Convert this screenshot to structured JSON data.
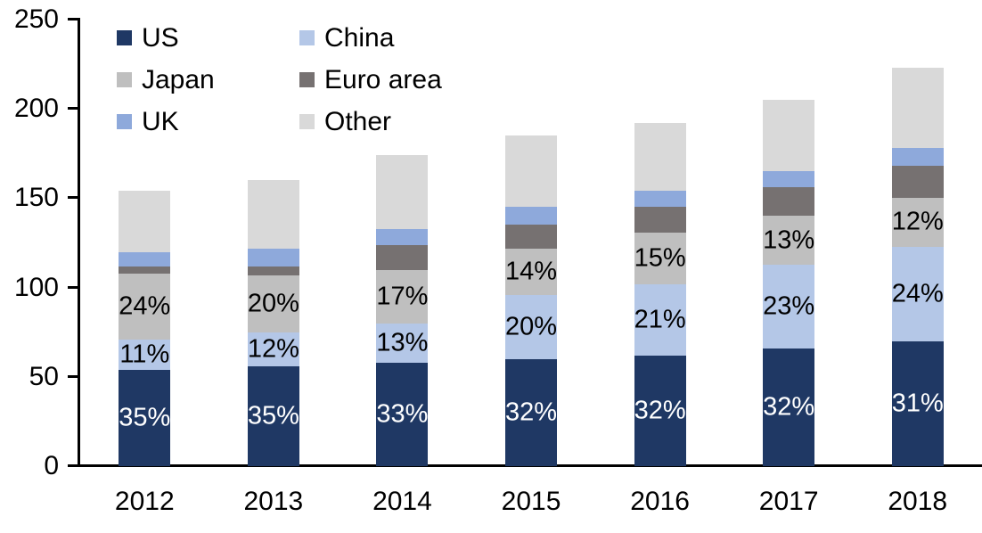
{
  "chart_data": {
    "type": "bar",
    "variant": "stacked",
    "title": "",
    "xlabel": "",
    "ylabel": "",
    "x": [
      "2012",
      "2013",
      "2014",
      "2015",
      "2016",
      "2017",
      "2018"
    ],
    "ylim": [
      0,
      250
    ],
    "yticks": [
      0,
      50,
      100,
      150,
      200,
      250
    ],
    "ytick_labels": [
      "0",
      "50",
      "100",
      "150",
      "200",
      "250"
    ],
    "grid": "off",
    "legend_position": "top-left-inside",
    "bar_totals": [
      154,
      160,
      174,
      185,
      192,
      205,
      223
    ],
    "series": [
      {
        "name": "US",
        "color": "#1f3864",
        "values": [
          54,
          56,
          58,
          60,
          62,
          66,
          70
        ],
        "labels": [
          "35%",
          "35%",
          "33%",
          "32%",
          "32%",
          "32%",
          "31%"
        ],
        "label_color": "#ffffff"
      },
      {
        "name": "China",
        "color": "#b4c7e7",
        "values": [
          17,
          19,
          22,
          36,
          40,
          47,
          53
        ],
        "labels": [
          "11%",
          "12%",
          "13%",
          "20%",
          "21%",
          "23%",
          "24%"
        ],
        "label_color": "#000000"
      },
      {
        "name": "Japan",
        "color": "#bfbfbf",
        "values": [
          37,
          32,
          30,
          26,
          29,
          27,
          27
        ],
        "labels": [
          "24%",
          "20%",
          "17%",
          "14%",
          "15%",
          "13%",
          "12%"
        ],
        "label_color": "#000000"
      },
      {
        "name": "Euro area",
        "color": "#767171",
        "values": [
          4,
          5,
          14,
          13,
          14,
          16,
          18
        ],
        "labels": null,
        "label_color": null
      },
      {
        "name": "UK",
        "color": "#8ea9db",
        "values": [
          8,
          10,
          9,
          10,
          9,
          9,
          10
        ],
        "labels": null,
        "label_color": null
      },
      {
        "name": "Other",
        "color": "#d9d9d9",
        "values": [
          34,
          38,
          41,
          40,
          38,
          40,
          45
        ],
        "labels": null,
        "label_color": null
      }
    ],
    "legend_order": [
      "US",
      "China",
      "Japan",
      "Euro area",
      "UK",
      "Other"
    ]
  },
  "axis_color": "#000000"
}
